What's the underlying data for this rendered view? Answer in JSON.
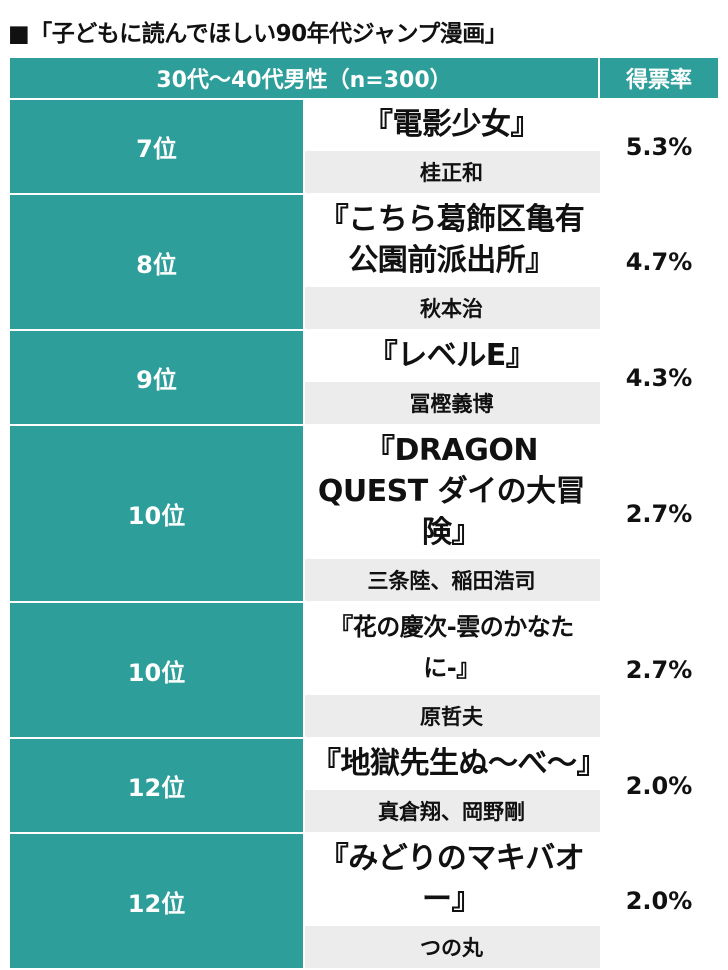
{
  "title": "■「子どもに読んでほしい90年代ジャンプ漫画」",
  "header": {
    "survey": "30代〜40代男性（n=300）",
    "rate_label": "得票率"
  },
  "rows": [
    {
      "rank": "7位",
      "title": "『電影少女』",
      "author": "桂正和",
      "rate": "5.3%"
    },
    {
      "rank": "8位",
      "title": "『こちら葛飾区亀有公園前派出所』",
      "author": "秋本治",
      "rate": "4.7%"
    },
    {
      "rank": "9位",
      "title": "『レベルE』",
      "author": "冨樫義博",
      "rate": "4.3%"
    },
    {
      "rank": "10位",
      "title": "『DRAGON QUEST ダイの大冒険』",
      "author": "三条陸、稲田浩司",
      "rate": "2.7%"
    },
    {
      "rank": "10位",
      "title": "『花の慶次-雲のかなたに-』",
      "author": "原哲夫",
      "rate": "2.7%"
    },
    {
      "rank": "12位",
      "title": "『地獄先生ぬ〜べ〜』",
      "author": "真倉翔、岡野剛",
      "rate": "2.0%"
    },
    {
      "rank": "12位",
      "title": "『みどりのマキバオー』",
      "author": "つの丸",
      "rate": "2.0%"
    }
  ]
}
